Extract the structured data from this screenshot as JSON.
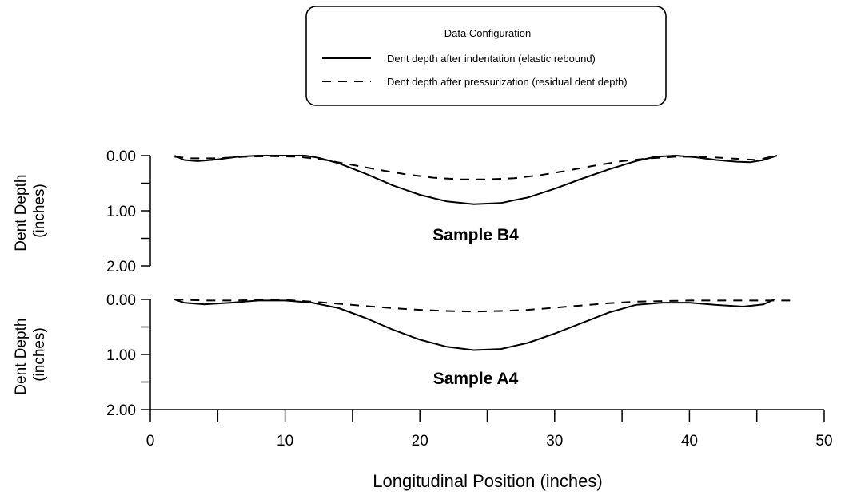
{
  "chart_data": {
    "type": "line",
    "legend": {
      "title": "Data Configuration",
      "placement": "top-center",
      "entries": [
        {
          "label": "Dent depth after indentation (elastic rebound)",
          "style": "solid"
        },
        {
          "label": "Dent depth after pressurization (residual dent depth)",
          "style": "dashed"
        }
      ]
    },
    "xlabel": "Longitudinal Position (inches)",
    "xlim": [
      0,
      50
    ],
    "xticks": [
      0,
      10,
      20,
      30,
      40,
      50
    ],
    "xtick_labels": [
      "0",
      "10",
      "20",
      "30",
      "40",
      "50"
    ],
    "grid": false,
    "color": "#000000",
    "panels": [
      {
        "label": "Sample B4",
        "ylabel_line1": "Dent Depth",
        "ylabel_line2": "(inches)",
        "ylim": [
          0,
          2
        ],
        "y_inverted": true,
        "yticks": [
          0,
          1,
          2
        ],
        "ytick_labels": [
          "0.00",
          "1.00",
          "2.00"
        ],
        "series": [
          {
            "style": "solid",
            "x": [
              1.8,
              2.5,
              3.5,
              5,
              6.5,
              8,
              10,
              11.5,
              12.5,
              14,
              16,
              18,
              20,
              22,
              24,
              26,
              28,
              30,
              32,
              34,
              36,
              37.5,
              39,
              40.5,
              42,
              43.5,
              44.5,
              45.5,
              46.5
            ],
            "y": [
              0.0,
              0.08,
              0.1,
              0.07,
              0.02,
              0.0,
              0.0,
              0.0,
              0.04,
              0.14,
              0.33,
              0.54,
              0.71,
              0.83,
              0.88,
              0.86,
              0.76,
              0.6,
              0.42,
              0.25,
              0.1,
              0.02,
              0.0,
              0.03,
              0.08,
              0.11,
              0.12,
              0.08,
              0.0
            ]
          },
          {
            "style": "dashed",
            "x": [
              1.8,
              3,
              5,
              7,
              9,
              11,
              13,
              15,
              17,
              19,
              21,
              23,
              25,
              27,
              29,
              31,
              33,
              35,
              37,
              39,
              41,
              43,
              45,
              46.5
            ],
            "y": [
              0.02,
              0.05,
              0.05,
              0.02,
              0.01,
              0.02,
              0.08,
              0.17,
              0.26,
              0.34,
              0.4,
              0.43,
              0.43,
              0.41,
              0.35,
              0.27,
              0.18,
              0.1,
              0.05,
              0.02,
              0.02,
              0.05,
              0.08,
              0.0
            ]
          }
        ]
      },
      {
        "label": "Sample A4",
        "ylabel_line1": "Dent Depth",
        "ylabel_line2": "(inches)",
        "ylim": [
          0,
          2
        ],
        "y_inverted": true,
        "yticks": [
          0,
          1,
          2
        ],
        "ytick_labels": [
          "0.00",
          "1.00",
          "2.00"
        ],
        "series": [
          {
            "style": "solid",
            "x": [
              1.8,
              2.5,
              4,
              6,
              8,
              10,
              12,
              14,
              16,
              18,
              20,
              22,
              24,
              26,
              28,
              30,
              32,
              34,
              36,
              38,
              40,
              42,
              44,
              45.5,
              46.3
            ],
            "y": [
              0.0,
              0.06,
              0.09,
              0.06,
              0.02,
              0.02,
              0.06,
              0.16,
              0.34,
              0.55,
              0.73,
              0.86,
              0.92,
              0.9,
              0.79,
              0.62,
              0.43,
              0.24,
              0.1,
              0.06,
              0.06,
              0.1,
              0.13,
              0.09,
              0.0
            ]
          },
          {
            "style": "dashed",
            "x": [
              1.8,
              4,
              6,
              8,
              10,
              12,
              14,
              16,
              18,
              20,
              22,
              24,
              26,
              28,
              30,
              32,
              34,
              36,
              38,
              40,
              42,
              44,
              46,
              47.5
            ],
            "y": [
              0.0,
              0.02,
              0.02,
              0.01,
              0.01,
              0.04,
              0.08,
              0.12,
              0.16,
              0.19,
              0.21,
              0.22,
              0.21,
              0.19,
              0.15,
              0.11,
              0.07,
              0.04,
              0.03,
              0.02,
              0.02,
              0.02,
              0.02,
              0.02
            ]
          }
        ]
      }
    ]
  }
}
